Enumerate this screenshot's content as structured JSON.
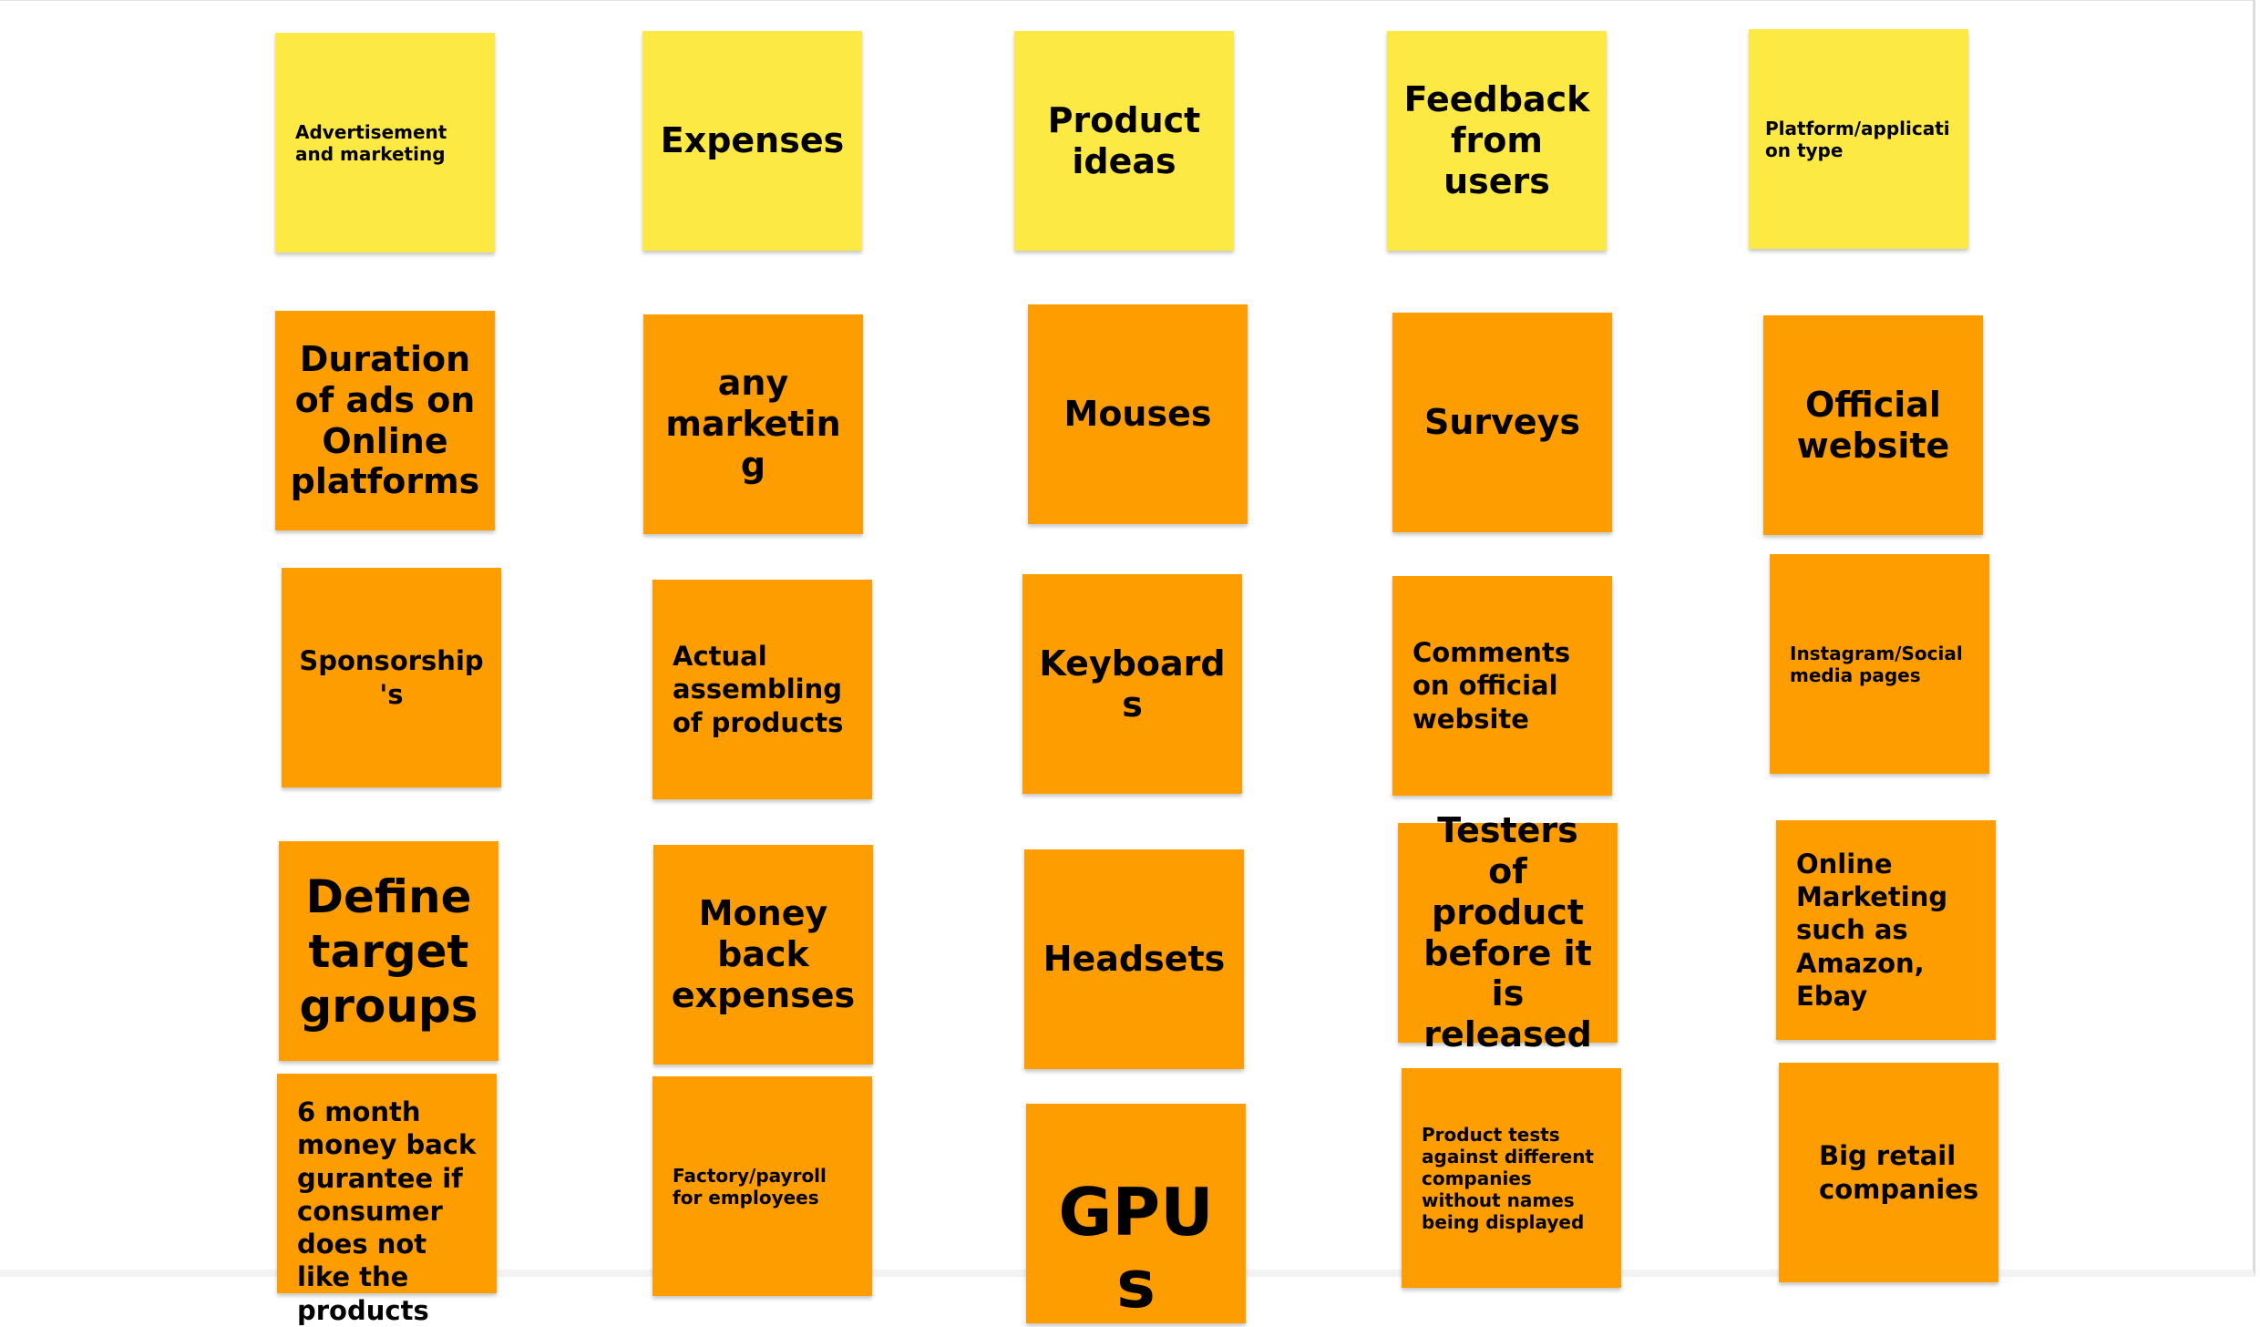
{
  "board": {
    "colors": {
      "header": "#fde943",
      "item": "#fd9d00",
      "text": "#000000"
    },
    "columns": [
      {
        "header": "Advertisement and marketing",
        "items": [
          "Duration of ads on Online platforms",
          "Sponsorship's",
          "Define target groups",
          "6 month money back gurantee if consumer does not like the products"
        ]
      },
      {
        "header": "Expenses",
        "items": [
          "any marketing",
          "Actual assembling of products",
          "Money back expenses",
          "Factory/payroll for employees"
        ]
      },
      {
        "header": "Product ideas",
        "items": [
          "Mouses",
          "Keyboards",
          "Headsets",
          "GPUs"
        ]
      },
      {
        "header": "Feedback from users",
        "items": [
          "Surveys",
          "Comments on official website",
          "Testers of product before it is released",
          "Product tests against different companies without names being displayed"
        ]
      },
      {
        "header": "Platform/application type",
        "items": [
          "Official website",
          "Instagram/Social media pages",
          "Online Marketing such as Amazon, Ebay",
          "Big retail companies"
        ]
      }
    ]
  }
}
